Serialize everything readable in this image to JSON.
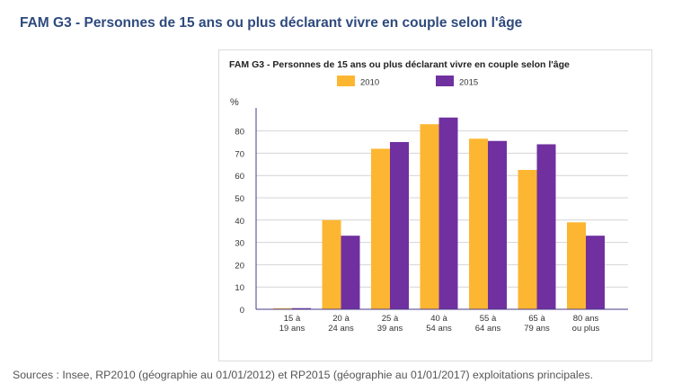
{
  "page": {
    "title": "FAM G3 - Personnes de 15 ans ou plus déclarant vivre en couple selon l'âge",
    "sources": "Sources : Insee, RP2010 (géographie au 01/01/2012) et RP2015 (géographie au 01/01/2017) exploitations principales."
  },
  "chart_data": {
    "type": "bar",
    "title": "FAM G3 - Personnes de 15 ans ou plus déclarant vivre en couple selon l'âge",
    "ylabel": "%",
    "xlabel": "",
    "ylim": [
      0,
      90
    ],
    "yticks": [
      0,
      10,
      20,
      30,
      40,
      50,
      60,
      70,
      80
    ],
    "grid": true,
    "legend_position": "top",
    "categories": [
      [
        "15 à",
        "19 ans"
      ],
      [
        "20 à",
        "24 ans"
      ],
      [
        "25 à",
        "39 ans"
      ],
      [
        "40 à",
        "54 ans"
      ],
      [
        "55 à",
        "64 ans"
      ],
      [
        "65 à",
        "79 ans"
      ],
      [
        "80 ans",
        "ou plus"
      ]
    ],
    "series": [
      {
        "name": "2010",
        "color": "#fdb632",
        "values": [
          0.5,
          40,
          72,
          83,
          76.5,
          62.5,
          39
        ]
      },
      {
        "name": "2015",
        "color": "#7030a0",
        "values": [
          0.5,
          33,
          75,
          86,
          75.5,
          74,
          33
        ]
      }
    ]
  }
}
